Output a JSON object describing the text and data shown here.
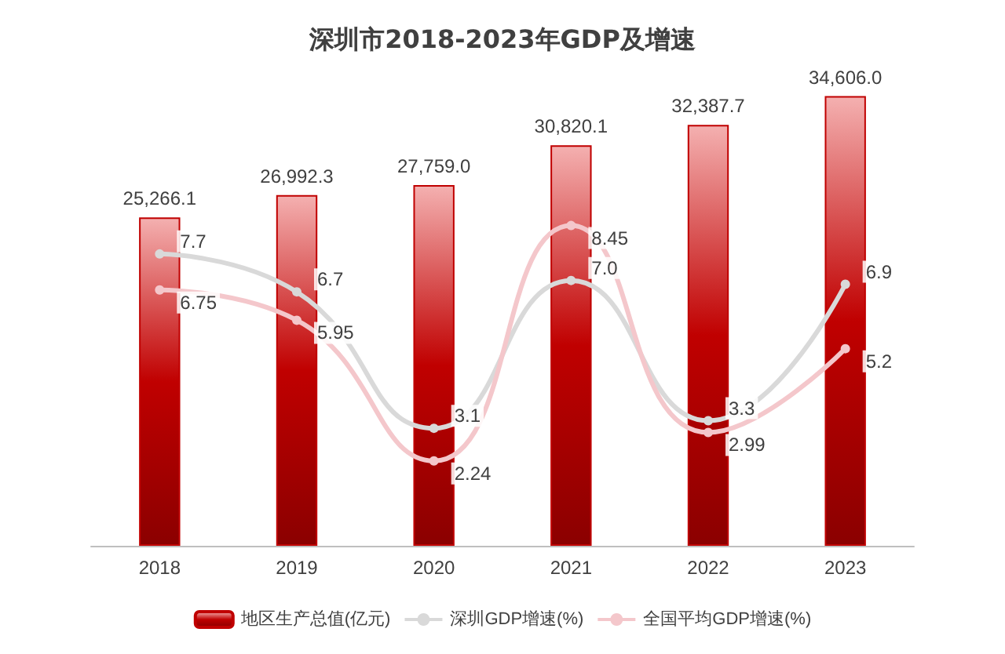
{
  "chart_data": {
    "type": "bar",
    "title": "深圳市2018-2023年GDP及增速",
    "categories": [
      "2018",
      "2019",
      "2020",
      "2021",
      "2022",
      "2023"
    ],
    "series": [
      {
        "name": "地区生产总值(亿元)",
        "color": "#c00000",
        "values": [
          25266.1,
          26992.3,
          27759.0,
          30820.1,
          32387.7,
          34606.0
        ],
        "value_labels": [
          "25,266.1",
          "26,992.3",
          "27,759.0",
          "30,820.1",
          "32,387.7",
          "34,606.0"
        ]
      },
      {
        "name": "深圳GDP增速(%)",
        "type": "line",
        "axis": "y2",
        "color": "#d9d9d9",
        "values": [
          7.7,
          6.7,
          3.1,
          7.0,
          3.3,
          6.9
        ],
        "value_labels": [
          "7.7",
          "6.7",
          "3.1",
          "7.0",
          "3.3",
          "6.9"
        ]
      },
      {
        "name": "全国平均GDP增速(%)",
        "type": "line",
        "axis": "y2",
        "color": "#f4c7cb",
        "values": [
          6.75,
          5.95,
          2.24,
          8.45,
          2.99,
          5.2
        ],
        "value_labels": [
          "6.75",
          "5.95",
          "2.24",
          "8.45",
          "2.99",
          "5.2"
        ]
      }
    ],
    "legend": "bottom",
    "marker": "circle",
    "line_style": "solid"
  }
}
